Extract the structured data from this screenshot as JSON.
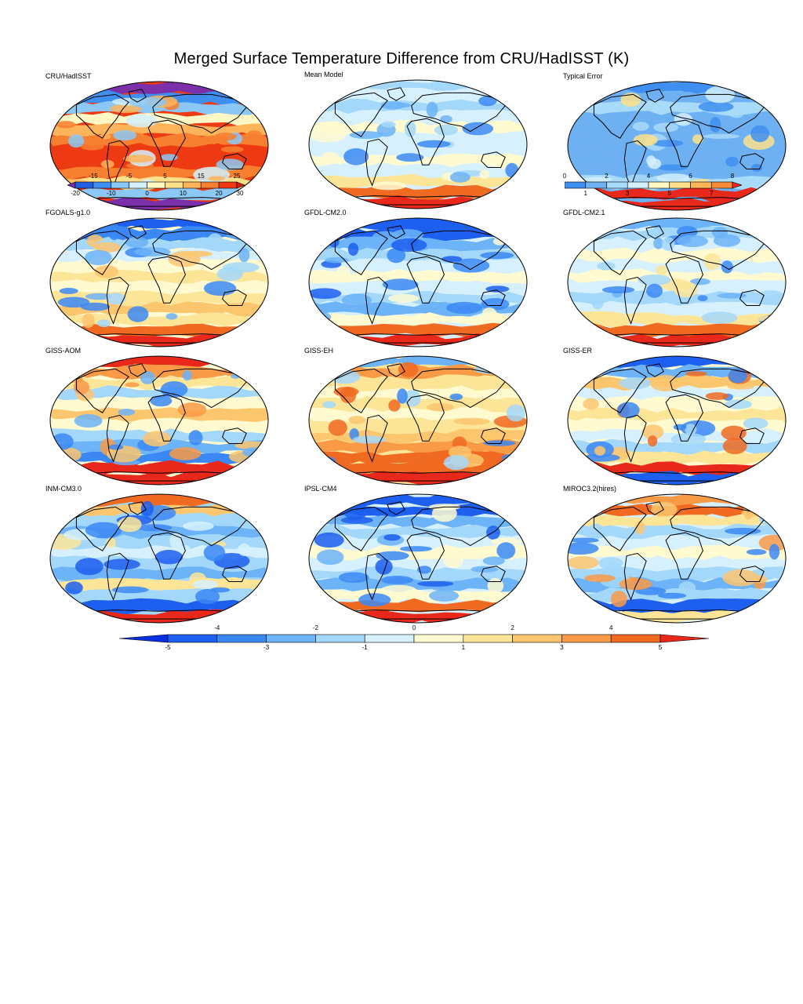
{
  "title": "Merged Surface Temperature Difference from CRU/HadISST (K)",
  "panels": [
    {
      "label": "CRU/HadISST",
      "scheme": "abs"
    },
    {
      "label": "Mean Model",
      "scheme": "mean"
    },
    {
      "label": "Typical Error",
      "scheme": "err"
    },
    {
      "label": "FGOALS-g1.0",
      "scheme": "cold"
    },
    {
      "label": "GFDL-CM2.0",
      "scheme": "cold2"
    },
    {
      "label": "GFDL-CM2.1",
      "scheme": "mild"
    },
    {
      "label": "GISS-AOM",
      "scheme": "warm"
    },
    {
      "label": "GISS-EH",
      "scheme": "warm2"
    },
    {
      "label": "GISS-ER",
      "scheme": "mix"
    },
    {
      "label": "INM-CM3.0",
      "scheme": "cold3"
    },
    {
      "label": "IPSL-CM4",
      "scheme": "cold2"
    },
    {
      "label": "MIROC3.2(hires)",
      "scheme": "mix2"
    }
  ],
  "abs_colorbar": {
    "top_ticks": [
      "-15",
      "-5",
      "5",
      "15",
      "25"
    ],
    "bottom_ticks": [
      "-20",
      "-10",
      "0",
      "10",
      "20",
      "30"
    ],
    "colors": [
      "#1f5fe0",
      "#3f8ff0",
      "#8cc8f5",
      "#d4f0fc",
      "#fff7c4",
      "#fde08a",
      "#fbb45a",
      "#f77f30",
      "#ee3a12"
    ],
    "low_color": "#7b2fa8",
    "high_color": "#d81c0c"
  },
  "err_colorbar": {
    "top_ticks": [
      "0",
      "2",
      "4",
      "6",
      "8"
    ],
    "bottom_ticks": [
      "1",
      "3",
      "5",
      "7"
    ],
    "colors": [
      "#3f8ff0",
      "#6eb1f3",
      "#a8dbf8",
      "#d4f0fc",
      "#fff7c4",
      "#fde08a",
      "#fbb45a",
      "#f68a38"
    ],
    "high_color": "#e8281a"
  },
  "diff_colorbar": {
    "top_ticks": [
      "-4",
      "-2",
      "0",
      "2",
      "4"
    ],
    "bottom_ticks": [
      "-5",
      "-3",
      "-1",
      "1",
      "3",
      "5"
    ],
    "colors": [
      "#1d5fee",
      "#3b88f4",
      "#6cb3f7",
      "#a4d8fa",
      "#d6f1fd",
      "#fffad0",
      "#fde598",
      "#fbc66e",
      "#f99a46",
      "#f06a22"
    ],
    "low_color": "#0a2fe0",
    "high_color": "#e8281a"
  }
}
